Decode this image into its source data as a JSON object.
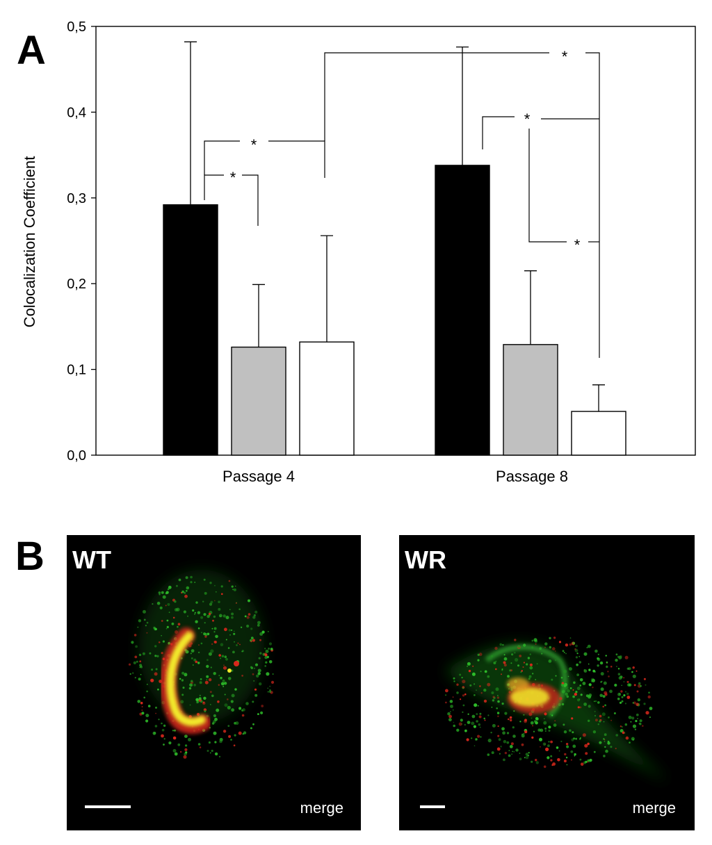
{
  "panels": {
    "a_label": "A",
    "b_label": "B"
  },
  "chart_data": {
    "type": "bar",
    "categories": [
      "Passage 4",
      "Passage 8"
    ],
    "series": [
      {
        "fill": "#000000",
        "values": [
          0.292,
          0.338
        ],
        "error_upper": [
          0.482,
          0.476
        ]
      },
      {
        "fill": "#c0c0c0",
        "values": [
          0.126,
          0.129
        ],
        "error_upper": [
          0.199,
          0.215
        ]
      },
      {
        "fill": "#ffffff",
        "values": [
          0.132,
          0.051
        ],
        "error_upper": [
          0.256,
          0.082
        ]
      }
    ],
    "ylabel": "Colocalization Coefficient",
    "xlabel": "",
    "ylim": [
      0,
      0.5
    ],
    "yticks": [
      "0,0",
      "0,1",
      "0,2",
      "0,3",
      "0,4",
      "0,5"
    ],
    "grid": false,
    "legend": "none",
    "significance_marker": "*",
    "significance_brackets": [
      {
        "between": "Passage 4 black vs Passage 4 grey",
        "label": "*"
      },
      {
        "between": "Passage 4 black vs Passage 4 white",
        "label": "*"
      },
      {
        "between": "Passage 4 white vs Passage 8 white",
        "label": "*"
      },
      {
        "between": "Passage 8 black vs Passage 8 white",
        "label": "*"
      },
      {
        "between": "Passage 8 grey vs Passage 8 white",
        "label": "*"
      }
    ]
  },
  "micrographs": [
    {
      "title": "WT",
      "caption": "merge",
      "colors": {
        "background": "#000000",
        "green": "#2fbf2a",
        "red": "#d8281c",
        "yellow": "#f2ea2a"
      }
    },
    {
      "title": "WR",
      "caption": "merge",
      "colors": {
        "background": "#000000",
        "green": "#2fbf2a",
        "red": "#d8281c",
        "yellow": "#f2ea2a"
      }
    }
  ]
}
